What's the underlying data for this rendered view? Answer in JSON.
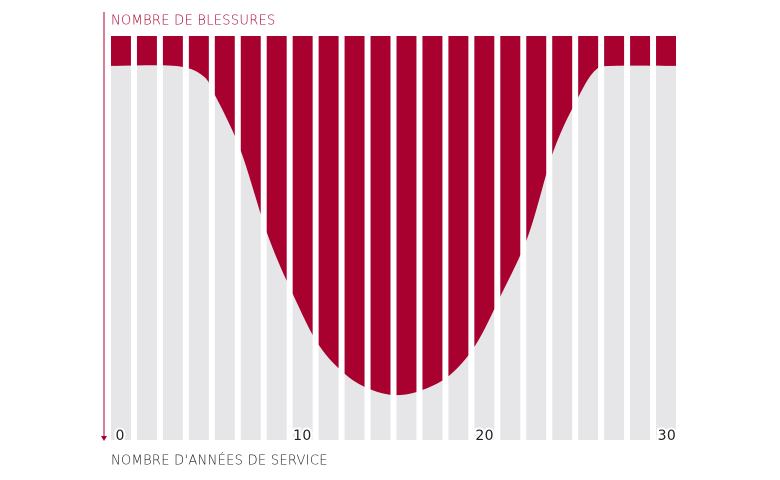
{
  "chart_data": {
    "type": "area",
    "title": "NOMBRE DE BLESSURES",
    "x_label": "NOMBRE D'ANNÉES DE SERVICE",
    "x": [
      -0.5,
      3,
      4.5,
      5.2,
      6.6,
      8.1,
      9.5,
      10.9,
      12.4,
      13.8,
      15.2,
      16.6,
      18.1,
      19.5,
      20.9,
      22.4,
      23.8,
      25.2,
      26.1,
      27,
      30.5
    ],
    "values": [
      7.4,
      7.4,
      9.7,
      14.6,
      28.2,
      49.3,
      64.1,
      76.5,
      83.9,
      87.6,
      88.9,
      87.6,
      83.9,
      76.5,
      64.1,
      49.3,
      28.2,
      14.6,
      8.4,
      7.4,
      7.4
    ],
    "color": "#a8002f",
    "background_color": "#e6e6e8",
    "xlim": [
      -0.5,
      30.5
    ],
    "xticks": [
      0,
      10,
      20,
      30
    ],
    "ylim": [
      0,
      100
    ],
    "y_inverted": true
  }
}
